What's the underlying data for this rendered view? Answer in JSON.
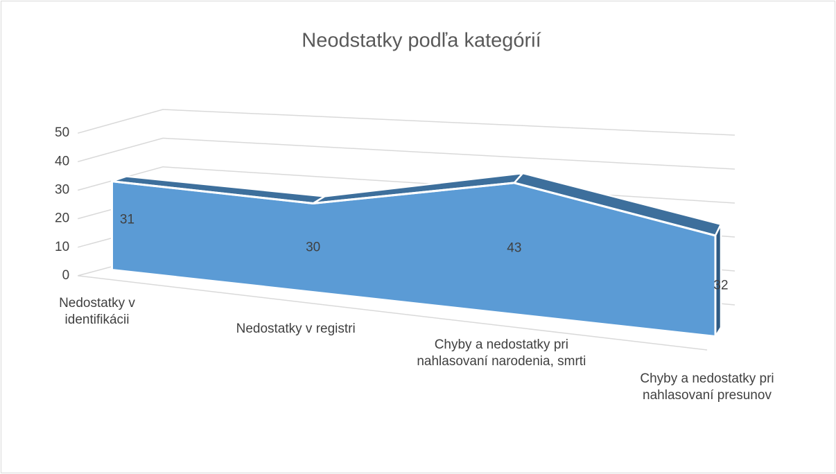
{
  "chart_data": {
    "type": "area3d",
    "title": "Neodstatky podľa kategórií",
    "categories": [
      "Nedostatky v identifikácii",
      "Nedostatky v registri",
      "Chyby a nedostatky pri nahlasovaní narodenia, smrti",
      "Chyby a nedostatky pri nahlasovaní presunov"
    ],
    "values": [
      31,
      30,
      43,
      32
    ],
    "color": "#5b9bd5",
    "ylim": [
      0,
      50
    ],
    "yticks": [
      0,
      10,
      20,
      30,
      40,
      50
    ],
    "grid": true
  }
}
